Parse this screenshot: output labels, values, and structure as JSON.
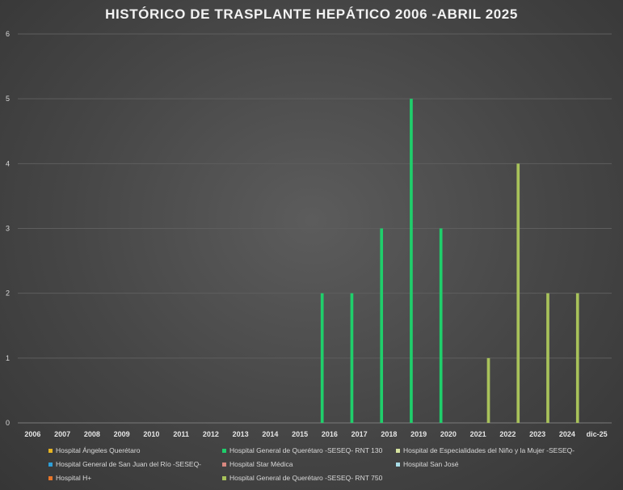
{
  "chart_data": {
    "type": "bar",
    "title": "HISTÓRICO DE TRASPLANTE HEPÁTICO 2006 -ABRIL 2025",
    "categories": [
      "2006",
      "2007",
      "2008",
      "2009",
      "2010",
      "2011",
      "2012",
      "2013",
      "2014",
      "2015",
      "2016",
      "2017",
      "2018",
      "2019",
      "2020",
      "2021",
      "2022",
      "2023",
      "2024",
      "dic-25"
    ],
    "ylim": [
      0,
      6
    ],
    "yticks": [
      0,
      1,
      2,
      3,
      4,
      5,
      6
    ],
    "grid": true,
    "legend_position": "bottom",
    "series": [
      {
        "name": "Hospital Ángeles Querétaro",
        "color": "#e6b422",
        "values": [
          0,
          0,
          0,
          0,
          0,
          0,
          0,
          0,
          0,
          0,
          0,
          0,
          0,
          0,
          0,
          0,
          0,
          0,
          0,
          0
        ]
      },
      {
        "name": "Hospital General de Querétaro -SESEQ- RNT 130",
        "color": "#1fcf6b",
        "values": [
          0,
          0,
          0,
          0,
          0,
          0,
          0,
          0,
          0,
          0,
          2,
          2,
          3,
          5,
          3,
          0,
          0,
          0,
          0,
          0
        ]
      },
      {
        "name": "Hospital de Especialidades del Niño y la Mujer -SESEQ-",
        "color": "#d6e3a0",
        "values": [
          0,
          0,
          0,
          0,
          0,
          0,
          0,
          0,
          0,
          0,
          0,
          0,
          0,
          0,
          0,
          0,
          0,
          0,
          0,
          0
        ]
      },
      {
        "name": "Hospital General de San Juan del Río -SESEQ-",
        "color": "#2e9fd8",
        "values": [
          0,
          0,
          0,
          0,
          0,
          0,
          0,
          0,
          0,
          0,
          0,
          0,
          0,
          0,
          0,
          0,
          0,
          0,
          0,
          0
        ]
      },
      {
        "name": "Hospital Star Médica",
        "color": "#d98880",
        "values": [
          0,
          0,
          0,
          0,
          0,
          0,
          0,
          0,
          0,
          0,
          0,
          0,
          0,
          0,
          0,
          0,
          0,
          0,
          0,
          0
        ]
      },
      {
        "name": "Hospital San José",
        "color": "#a9dde8",
        "values": [
          0,
          0,
          0,
          0,
          0,
          0,
          0,
          0,
          0,
          0,
          0,
          0,
          0,
          0,
          0,
          0,
          0,
          0,
          0,
          0
        ]
      },
      {
        "name": "Hospital H+",
        "color": "#e8762a",
        "values": [
          0,
          0,
          0,
          0,
          0,
          0,
          0,
          0,
          0,
          0,
          0,
          0,
          0,
          0,
          0,
          0,
          0,
          0,
          0,
          0
        ]
      },
      {
        "name": "Hospital General de Querétaro -SESEQ- RNT 750",
        "color": "#a8c25a",
        "values": [
          0,
          0,
          0,
          0,
          0,
          0,
          0,
          0,
          0,
          0,
          0,
          0,
          0,
          0,
          0,
          1,
          4,
          2,
          2,
          0
        ]
      }
    ]
  }
}
